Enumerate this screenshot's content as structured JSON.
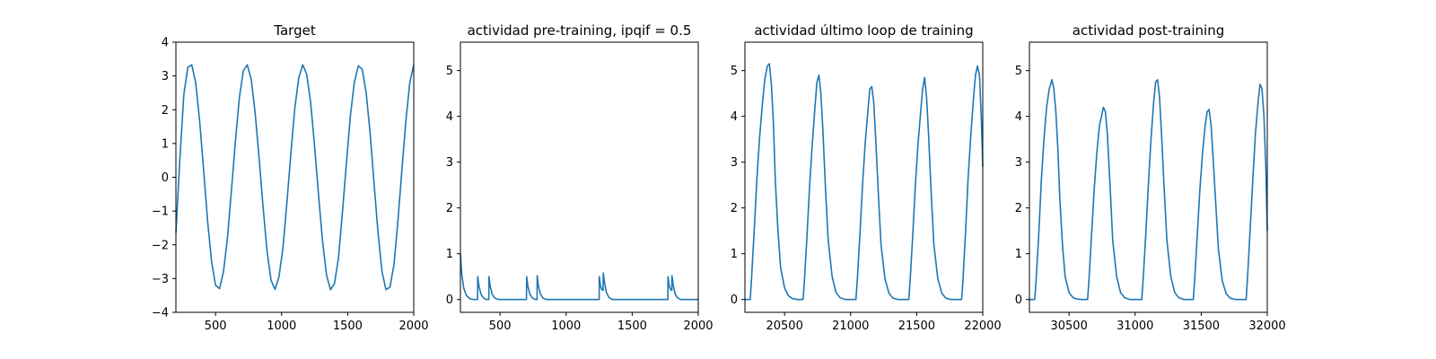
{
  "chart_data": [
    {
      "type": "line",
      "title": "Target",
      "xlim": [
        200,
        2000
      ],
      "ylim": [
        -4,
        4
      ],
      "xticks": [
        500,
        1000,
        1500,
        2000
      ],
      "yticks": [
        -4,
        -3,
        -2,
        -1,
        0,
        1,
        2,
        3,
        4
      ],
      "line_color": "#1f77b4",
      "series": [
        {
          "x": [
            200,
            230,
            260,
            290,
            320,
            350,
            380,
            410,
            440,
            470,
            500,
            530,
            560,
            590,
            620,
            650,
            680,
            710,
            740,
            770,
            800,
            830,
            860,
            890,
            920,
            950,
            980,
            1010,
            1040,
            1070,
            1100,
            1130,
            1160,
            1190,
            1220,
            1250,
            1280,
            1310,
            1340,
            1370,
            1400,
            1430,
            1460,
            1490,
            1520,
            1550,
            1580,
            1610,
            1640,
            1670,
            1700,
            1730,
            1760,
            1790,
            1820,
            1850,
            1880,
            1910,
            1940,
            1970,
            2000
          ],
          "y": [
            -1.65,
            0.55,
            2.45,
            3.25,
            3.33,
            2.8,
            1.65,
            0.2,
            -1.3,
            -2.5,
            -3.2,
            -3.3,
            -2.8,
            -1.8,
            -0.4,
            1.05,
            2.35,
            3.15,
            3.33,
            2.9,
            1.9,
            0.55,
            -0.9,
            -2.2,
            -3.05,
            -3.32,
            -2.95,
            -2.1,
            -0.75,
            0.7,
            2.05,
            2.95,
            3.33,
            3.05,
            2.2,
            0.9,
            -0.55,
            -1.9,
            -2.9,
            -3.33,
            -3.15,
            -2.4,
            -1.05,
            0.4,
            1.8,
            2.8,
            3.3,
            3.2,
            2.5,
            1.3,
            -0.2,
            -1.65,
            -2.8,
            -3.33,
            -3.25,
            -2.6,
            -1.3,
            0.2,
            1.65,
            2.8,
            3.33
          ]
        }
      ]
    },
    {
      "type": "line",
      "title": "actividad pre-training, ipqif = 0.5",
      "xlim": [
        200,
        2000
      ],
      "ylim": [
        -0.28,
        5.62
      ],
      "xticks": [
        500,
        1000,
        1500,
        2000
      ],
      "yticks": [
        0,
        1,
        2,
        3,
        4,
        5
      ],
      "line_color": "#1f77b4",
      "series": [
        {
          "x": [
            200,
            210,
            225,
            245,
            270,
            300,
            330,
            331,
            340,
            355,
            375,
            400,
            415,
            416,
            425,
            440,
            460,
            490,
            600,
            700,
            701,
            710,
            725,
            745,
            770,
            780,
            781,
            790,
            805,
            825,
            850,
            1000,
            1200,
            1250,
            1251,
            1260,
            1270,
            1280,
            1281,
            1290,
            1305,
            1325,
            1350,
            1500,
            1700,
            1770,
            1771,
            1780,
            1790,
            1800,
            1801,
            1810,
            1825,
            1845,
            1870,
            2000
          ],
          "y": [
            1.0,
            0.55,
            0.25,
            0.09,
            0.02,
            0.0,
            0.0,
            0.5,
            0.3,
            0.12,
            0.03,
            0.0,
            0.0,
            0.5,
            0.3,
            0.12,
            0.03,
            0.0,
            0.0,
            0.0,
            0.5,
            0.3,
            0.12,
            0.03,
            0.0,
            0.0,
            0.52,
            0.3,
            0.12,
            0.03,
            0.0,
            0.0,
            0.0,
            0.0,
            0.5,
            0.3,
            0.22,
            0.2,
            0.58,
            0.38,
            0.15,
            0.04,
            0.0,
            0.0,
            0.0,
            0.0,
            0.5,
            0.3,
            0.22,
            0.2,
            0.52,
            0.32,
            0.12,
            0.03,
            0.0,
            0.0
          ]
        }
      ]
    },
    {
      "type": "line",
      "title": "actividad último loop de training",
      "xlim": [
        20200,
        22000
      ],
      "ylim": [
        -0.28,
        5.62
      ],
      "xticks": [
        20500,
        21000,
        21500,
        22000
      ],
      "yticks": [
        0,
        1,
        2,
        3,
        4,
        5
      ],
      "line_color": "#1f77b4",
      "series": [
        {
          "x": [
            20200,
            20240,
            20250,
            20270,
            20290,
            20310,
            20330,
            20350,
            20370,
            20385,
            20400,
            20415,
            20430,
            20450,
            20470,
            20500,
            20530,
            20560,
            20600,
            20640,
            20650,
            20670,
            20690,
            20710,
            20730,
            20745,
            20760,
            20775,
            20790,
            20810,
            20830,
            20860,
            20890,
            20920,
            20960,
            21040,
            21050,
            21070,
            21090,
            21110,
            21130,
            21145,
            21160,
            21175,
            21190,
            21210,
            21230,
            21260,
            21290,
            21320,
            21360,
            21440,
            21450,
            21470,
            21490,
            21510,
            21530,
            21545,
            21560,
            21575,
            21590,
            21610,
            21630,
            21660,
            21690,
            21720,
            21760,
            21840,
            21850,
            21870,
            21890,
            21910,
            21930,
            21945,
            21960,
            21975,
            21990,
            22000
          ],
          "y": [
            0.0,
            0.0,
            0.45,
            1.5,
            2.6,
            3.5,
            4.2,
            4.8,
            5.1,
            5.15,
            4.7,
            3.9,
            2.6,
            1.5,
            0.7,
            0.25,
            0.08,
            0.02,
            0.0,
            0.0,
            0.4,
            1.4,
            2.5,
            3.4,
            4.2,
            4.75,
            4.9,
            4.5,
            3.7,
            2.4,
            1.3,
            0.5,
            0.15,
            0.04,
            0.0,
            0.0,
            0.4,
            1.4,
            2.5,
            3.4,
            4.1,
            4.6,
            4.65,
            4.3,
            3.5,
            2.3,
            1.2,
            0.45,
            0.14,
            0.03,
            0.0,
            0.0,
            0.4,
            1.4,
            2.5,
            3.4,
            4.1,
            4.6,
            4.85,
            4.4,
            3.6,
            2.3,
            1.2,
            0.45,
            0.14,
            0.03,
            0.0,
            0.0,
            0.4,
            1.5,
            2.7,
            3.6,
            4.4,
            4.9,
            5.1,
            4.9,
            3.9,
            2.9
          ]
        }
      ]
    },
    {
      "type": "line",
      "title": "actividad post-training",
      "xlim": [
        30200,
        32000
      ],
      "ylim": [
        -0.28,
        5.62
      ],
      "xticks": [
        30500,
        31000,
        31500,
        32000
      ],
      "yticks": [
        0,
        1,
        2,
        3,
        4,
        5
      ],
      "line_color": "#1f77b4",
      "series": [
        {
          "x": [
            30200,
            30240,
            30250,
            30270,
            30290,
            30310,
            30330,
            30350,
            30370,
            30385,
            30400,
            30415,
            30430,
            30450,
            30470,
            30500,
            30530,
            30560,
            30600,
            30640,
            30650,
            30670,
            30690,
            30710,
            30730,
            30745,
            30760,
            30775,
            30790,
            30810,
            30830,
            30860,
            30890,
            30920,
            30960,
            31050,
            31060,
            31080,
            31100,
            31120,
            31140,
            31155,
            31170,
            31185,
            31200,
            31220,
            31240,
            31270,
            31300,
            31330,
            31370,
            31440,
            31450,
            31470,
            31490,
            31510,
            31530,
            31545,
            31560,
            31575,
            31590,
            31610,
            31630,
            31660,
            31690,
            31720,
            31760,
            31840,
            31850,
            31870,
            31890,
            31910,
            31930,
            31945,
            31960,
            31975,
            31990,
            32000
          ],
          "y": [
            0.0,
            0.0,
            0.4,
            1.4,
            2.6,
            3.5,
            4.2,
            4.6,
            4.8,
            4.6,
            4.1,
            3.3,
            2.2,
            1.2,
            0.5,
            0.15,
            0.04,
            0.01,
            0.0,
            0.0,
            0.4,
            1.4,
            2.4,
            3.2,
            3.8,
            4.0,
            4.2,
            4.1,
            3.6,
            2.5,
            1.3,
            0.5,
            0.15,
            0.04,
            0.0,
            0.0,
            0.4,
            1.4,
            2.5,
            3.5,
            4.3,
            4.75,
            4.8,
            4.4,
            3.6,
            2.4,
            1.3,
            0.5,
            0.15,
            0.04,
            0.0,
            0.0,
            0.4,
            1.4,
            2.4,
            3.2,
            3.8,
            4.1,
            4.15,
            3.8,
            3.1,
            2.1,
            1.1,
            0.4,
            0.12,
            0.03,
            0.0,
            0.0,
            0.45,
            1.5,
            2.6,
            3.6,
            4.3,
            4.7,
            4.6,
            4.0,
            2.8,
            1.5
          ]
        }
      ]
    }
  ]
}
